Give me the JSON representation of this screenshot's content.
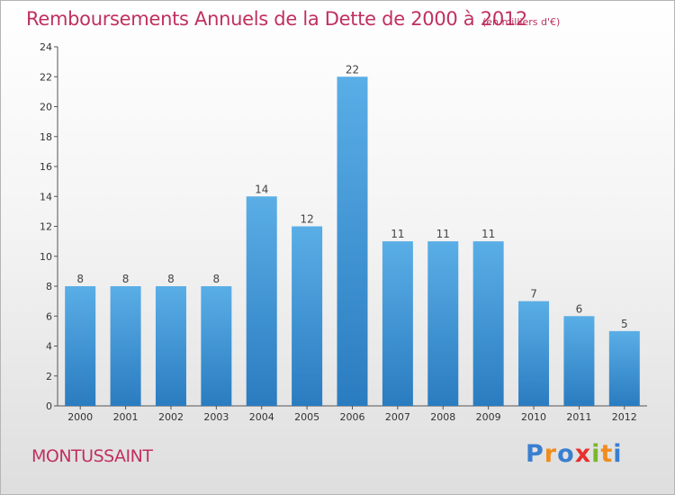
{
  "header": {
    "title": "Remboursements Annuels de la Dette de 2000 à 2012",
    "subtitle": "(en milliers d'€)"
  },
  "footer": {
    "city": "MONTUSSAINT",
    "logo": [
      "P",
      "r",
      "o",
      "x",
      "i",
      "t",
      "i"
    ]
  },
  "colors": {
    "title": "#c0305f",
    "bar_top": "#5aaee6",
    "bar_bottom": "#2a7cc0",
    "logo": [
      "#3a7fd0",
      "#f08c1e",
      "#3a7fd0",
      "#e8302e",
      "#7ab82a",
      "#f08c1e",
      "#3a7fd0"
    ]
  },
  "chart_data": {
    "type": "bar",
    "title": "Remboursements Annuels de la Dette de 2000 à 2012",
    "subtitle": "(en milliers d'€)",
    "categories": [
      "2000",
      "2001",
      "2002",
      "2003",
      "2004",
      "2005",
      "2006",
      "2007",
      "2008",
      "2009",
      "2010",
      "2011",
      "2012"
    ],
    "values": [
      8,
      8,
      8,
      8,
      14,
      12,
      22,
      11,
      11,
      11,
      7,
      6,
      5
    ],
    "ylim": [
      0,
      24
    ],
    "yticks": [
      0,
      2,
      4,
      6,
      8,
      10,
      12,
      14,
      16,
      18,
      20,
      22,
      24
    ],
    "grid": false,
    "legend": "none"
  }
}
